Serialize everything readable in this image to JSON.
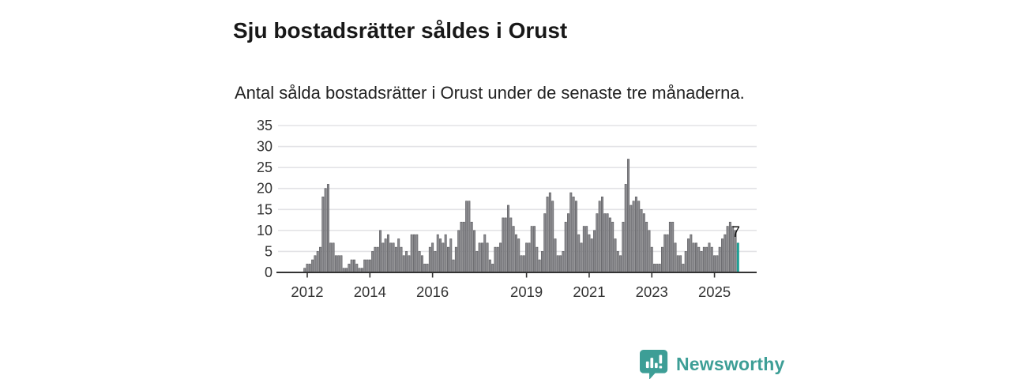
{
  "header": {
    "title": "Sju bostadsrätter såldes i Orust",
    "subtitle": "Antal sålda bostadsrätter i Orust under de senaste tre månaderna."
  },
  "chart_data": {
    "type": "bar",
    "title": "Sju bostadsrätter såldes i Orust",
    "subtitle": "Antal sålda bostadsrätter i Orust under de senaste tre månaderna.",
    "xlabel": "",
    "ylabel": "",
    "ylim": [
      0,
      35
    ],
    "yticks": [
      0,
      5,
      10,
      15,
      20,
      25,
      30,
      35
    ],
    "xticks": [
      2012,
      2014,
      2016,
      2019,
      2021,
      2023,
      2025
    ],
    "grid": "horizontal",
    "start_period": "2011-12",
    "frequency": "monthly",
    "last_value_label": "7",
    "highlight_last": true,
    "values": [
      1,
      2,
      2,
      3,
      4,
      5,
      6,
      18,
      20,
      21,
      7,
      7,
      4,
      4,
      4,
      1,
      1,
      2,
      3,
      3,
      2,
      1,
      1,
      3,
      3,
      3,
      5,
      6,
      6,
      10,
      7,
      8,
      9,
      7,
      7,
      6,
      8,
      6,
      4,
      5,
      4,
      9,
      9,
      9,
      5,
      4,
      2,
      2,
      6,
      7,
      5,
      9,
      8,
      7,
      9,
      6,
      8,
      3,
      6,
      10,
      12,
      12,
      17,
      17,
      12,
      10,
      5,
      7,
      7,
      9,
      7,
      3,
      2,
      6,
      6,
      7,
      13,
      13,
      16,
      13,
      11,
      9,
      8,
      4,
      4,
      7,
      7,
      11,
      11,
      6,
      3,
      5,
      14,
      18,
      19,
      17,
      8,
      4,
      4,
      5,
      12,
      14,
      19,
      18,
      17,
      9,
      7,
      11,
      11,
      9,
      8,
      10,
      14,
      17,
      18,
      14,
      14,
      13,
      12,
      8,
      5,
      4,
      12,
      21,
      27,
      16,
      17,
      18,
      17,
      15,
      14,
      12,
      10,
      6,
      2,
      2,
      2,
      6,
      9,
      9,
      12,
      12,
      7,
      4,
      4,
      2,
      5,
      8,
      9,
      7,
      7,
      6,
      5,
      6,
      6,
      7,
      6,
      4,
      4,
      6,
      8,
      9,
      11,
      12,
      11,
      10,
      7
    ],
    "colors": {
      "bar": "#8a8a8e",
      "bar_stroke": "#58585c",
      "highlight": "#1fa79c",
      "highlight_stroke": "#158d83",
      "grid": "#e3e3e6",
      "axis": "#333333",
      "tick_label": "#333333",
      "annotation": "#111111"
    }
  },
  "footer": {
    "brand": "Newsworthy",
    "brand_color": "#3d9e96",
    "logo_icon": "bar-chart-speech-bubble"
  }
}
